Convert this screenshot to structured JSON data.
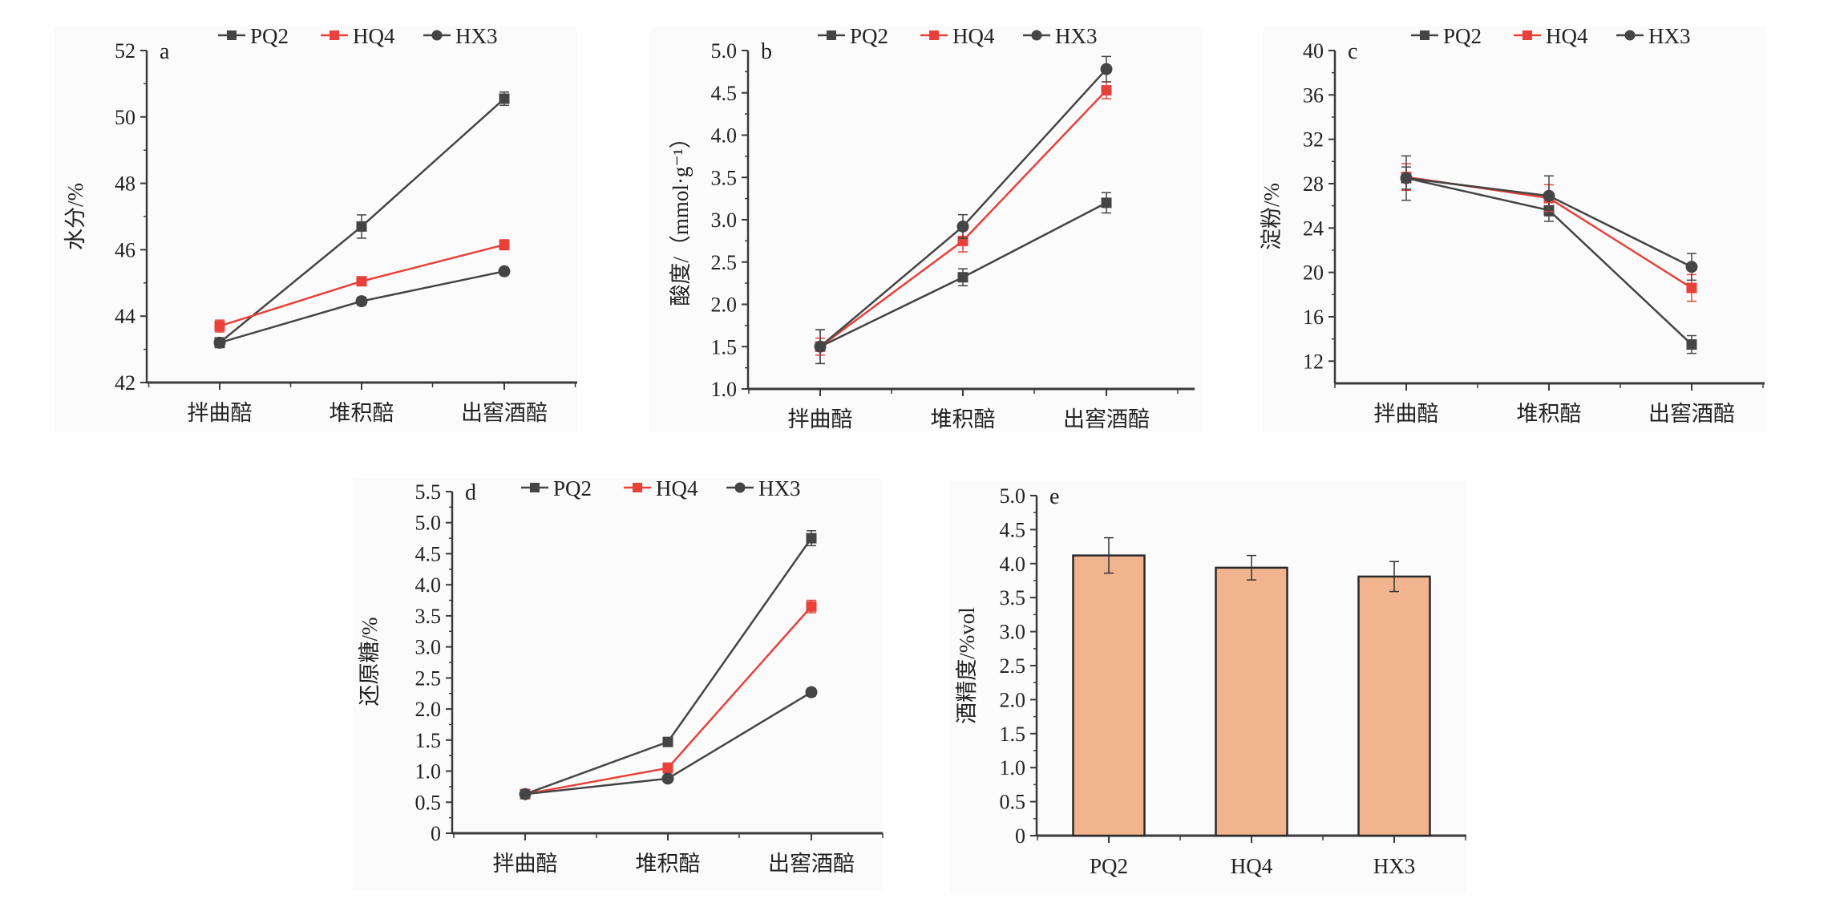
{
  "chart_data": [
    {
      "id": "a",
      "type": "line",
      "panel_label": "a",
      "title": "",
      "xlabel": "",
      "ylabel": "水分/%",
      "categories": [
        "拌曲醅",
        "堆积醅",
        "出窖酒醅"
      ],
      "ylim": [
        42,
        52
      ],
      "yticks": [
        42,
        44,
        46,
        48,
        50,
        52
      ],
      "ytick_labels": [
        "42",
        "44",
        "46",
        "48",
        "50",
        "52"
      ],
      "legend_position": "top",
      "series": [
        {
          "name": "PQ2",
          "marker": "square",
          "color": "#454545",
          "values": [
            43.2,
            46.7,
            50.55
          ],
          "errors": [
            0.15,
            0.35,
            0.2
          ]
        },
        {
          "name": "HQ4",
          "marker": "square",
          "color": "#e8413a",
          "values": [
            43.7,
            45.05,
            46.15
          ],
          "errors": [
            0.18,
            0.1,
            0.15
          ]
        },
        {
          "name": "HX3",
          "marker": "circle",
          "color": "#454545",
          "values": [
            43.2,
            44.45,
            45.35
          ],
          "errors": [
            0.12,
            0.12,
            0.1
          ]
        }
      ]
    },
    {
      "id": "b",
      "type": "line",
      "panel_label": "b",
      "title": "",
      "xlabel": "",
      "ylabel": "酸度/（mmol·g⁻¹）",
      "categories": [
        "拌曲醅",
        "堆积醅",
        "出窖酒醅"
      ],
      "ylim": [
        1.0,
        5.0
      ],
      "yticks": [
        1.0,
        1.5,
        2.0,
        2.5,
        3.0,
        3.5,
        4.0,
        4.5,
        5.0
      ],
      "ytick_labels": [
        "1.0",
        "1.5",
        "2.0",
        "2.5",
        "3.0",
        "3.5",
        "4.0",
        "4.5",
        "5.0"
      ],
      "legend_position": "top",
      "series": [
        {
          "name": "PQ2",
          "marker": "square",
          "color": "#454545",
          "values": [
            1.5,
            2.32,
            3.2
          ],
          "errors": [
            0.2,
            0.1,
            0.12
          ]
        },
        {
          "name": "HQ4",
          "marker": "square",
          "color": "#e8413a",
          "values": [
            1.5,
            2.75,
            4.53
          ],
          "errors": [
            0.1,
            0.13,
            0.1
          ]
        },
        {
          "name": "HX3",
          "marker": "circle",
          "color": "#454545",
          "values": [
            1.5,
            2.92,
            4.78
          ],
          "errors": [
            0.2,
            0.14,
            0.15
          ]
        }
      ]
    },
    {
      "id": "c",
      "type": "line",
      "panel_label": "c",
      "title": "",
      "xlabel": "",
      "ylabel": "淀粉/%",
      "categories": [
        "拌曲醅",
        "堆积醅",
        "出窖酒醅"
      ],
      "ylim": [
        10,
        40
      ],
      "yticks": [
        12,
        16,
        20,
        24,
        28,
        32,
        36,
        40
      ],
      "ytick_labels": [
        "12",
        "16",
        "20",
        "24",
        "28",
        "32",
        "36",
        "40"
      ],
      "legend_position": "top",
      "series": [
        {
          "name": "PQ2",
          "marker": "square",
          "color": "#454545",
          "values": [
            28.5,
            25.6,
            13.5
          ],
          "errors": [
            1.0,
            1.0,
            0.8
          ]
        },
        {
          "name": "HQ4",
          "marker": "square",
          "color": "#e8413a",
          "values": [
            28.6,
            26.7,
            18.6
          ],
          "errors": [
            1.2,
            1.2,
            1.2
          ]
        },
        {
          "name": "HX3",
          "marker": "circle",
          "color": "#454545",
          "values": [
            28.5,
            26.9,
            20.5
          ],
          "errors": [
            2.0,
            1.8,
            1.2
          ]
        }
      ]
    },
    {
      "id": "d",
      "type": "line",
      "panel_label": "d",
      "title": "",
      "xlabel": "",
      "ylabel": "还原糖/%",
      "categories": [
        "拌曲醅",
        "堆积醅",
        "出窖酒醅"
      ],
      "ylim": [
        0,
        5.5
      ],
      "yticks": [
        0,
        0.5,
        1.0,
        1.5,
        2.0,
        2.5,
        3.0,
        3.5,
        4.0,
        4.5,
        5.0,
        5.5
      ],
      "ytick_labels": [
        "0",
        "0.5",
        "1.0",
        "1.5",
        "2.0",
        "2.5",
        "3.0",
        "3.5",
        "4.0",
        "4.5",
        "5.0",
        "5.5"
      ],
      "legend_position": "top",
      "series": [
        {
          "name": "PQ2",
          "marker": "square",
          "color": "#454545",
          "values": [
            0.63,
            1.47,
            4.75
          ],
          "errors": [
            0.03,
            0.05,
            0.12
          ]
        },
        {
          "name": "HQ4",
          "marker": "square",
          "color": "#e8413a",
          "values": [
            0.63,
            1.05,
            3.65
          ],
          "errors": [
            0.03,
            0.08,
            0.1
          ]
        },
        {
          "name": "HX3",
          "marker": "circle",
          "color": "#454545",
          "values": [
            0.63,
            0.88,
            2.27
          ],
          "errors": [
            0.03,
            0.04,
            0.06
          ]
        }
      ]
    },
    {
      "id": "e",
      "type": "bar",
      "panel_label": "e",
      "title": "",
      "xlabel": "",
      "ylabel": "酒精度/%vol",
      "categories": [
        "PQ2",
        "HQ4",
        "HX3"
      ],
      "values": [
        4.12,
        3.94,
        3.81
      ],
      "errors": [
        0.26,
        0.18,
        0.22
      ],
      "bar_color": "#f2b48e",
      "ylim": [
        0,
        5.0
      ],
      "yticks": [
        0,
        0.5,
        1.0,
        1.5,
        2.0,
        2.5,
        3.0,
        3.5,
        4.0,
        4.5,
        5.0
      ],
      "ytick_labels": [
        "0",
        "0.5",
        "1.0",
        "1.5",
        "2.0",
        "2.5",
        "3.0",
        "3.5",
        "4.0",
        "4.5",
        "5.0"
      ]
    }
  ]
}
